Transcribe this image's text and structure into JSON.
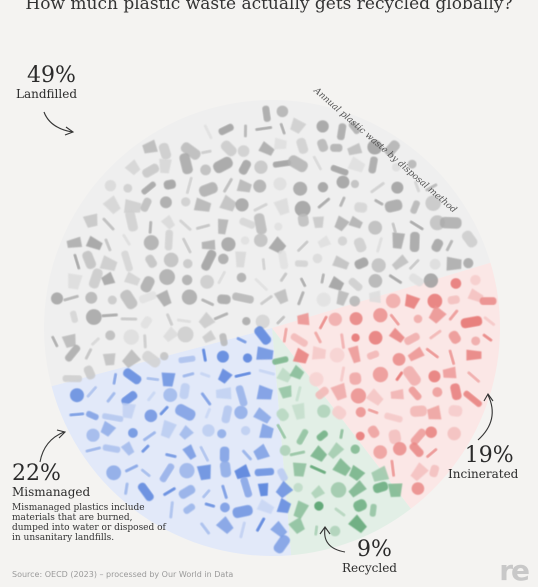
{
  "title": "How much plastic waste actually gets recycled globally?",
  "subtitle": "Annual plastic waste by disposal method",
  "chart_data": {
    "type": "pie",
    "title": "How much plastic waste actually gets recycled globally?",
    "subtitle": "Annual plastic waste by disposal method",
    "categories": [
      "Landfilled",
      "Incinerated",
      "Recycled",
      "Mismanaged"
    ],
    "values": [
      49,
      19,
      9,
      22
    ],
    "labels": [
      "49%",
      "19%",
      "9%",
      "22%"
    ],
    "colors": [
      "#8c8c8c",
      "#e0524f",
      "#2e8b4a",
      "#2e64d4"
    ],
    "legend": "annotations around the pie"
  },
  "labels": {
    "landfilled": {
      "pct": "49%",
      "name": "Landfilled"
    },
    "incinerated": {
      "pct": "19%",
      "name": "Incinerated"
    },
    "recycled": {
      "pct": "9%",
      "name": "Recycled"
    },
    "mismanaged": {
      "pct": "22%",
      "name": "Mismanaged"
    }
  },
  "note": "Mismanaged plastics include materials that are burned, dumped into water or disposed of in unsanitary landfills.",
  "source": "Source: OECD (2023) – processed by Our World in Data",
  "logo": "re"
}
